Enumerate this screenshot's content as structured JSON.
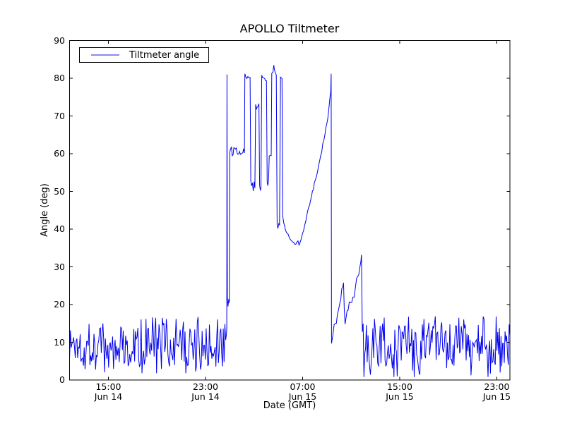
{
  "title": "APOLLO Tiltmeter",
  "legend": {
    "label": "Tiltmeter angle",
    "position": "upper left"
  },
  "colors": {
    "line": "#0000ee",
    "legend_line": "#8a8af0",
    "frame": "#000000",
    "text": "#000000",
    "background": "#ffffff"
  },
  "chart_data": {
    "type": "line",
    "title": "APOLLO Tiltmeter",
    "xlabel": "Date (GMT)",
    "ylabel": "Angle (deg)",
    "ylim": [
      0,
      90
    ],
    "y_ticks": [
      0,
      10,
      20,
      30,
      40,
      50,
      60,
      70,
      80,
      90
    ],
    "grid": false,
    "legend_position": "upper left",
    "x_axis": {
      "unit": "hours_from_left_edge",
      "span_hours": 36.28,
      "ticks": [
        {
          "hours": 3.2,
          "time": "15:00",
          "date": "Jun 14"
        },
        {
          "hours": 11.2,
          "time": "23:00",
          "date": "Jun 14"
        },
        {
          "hours": 19.2,
          "time": "07:00",
          "date": "Jun 15"
        },
        {
          "hours": 27.2,
          "time": "15:00",
          "date": "Jun 15"
        },
        {
          "hours": 35.2,
          "time": "23:00",
          "date": "Jun 15"
        }
      ]
    },
    "series": [
      {
        "name": "Tiltmeter angle",
        "color": "#0000ee",
        "segments": [
          {
            "t": "noise",
            "h0": 0,
            "h1": 12.93,
            "mean": 9.4,
            "amp": 6.0,
            "min": 1.8
          },
          {
            "t": "path",
            "amp": 0.6,
            "pts": [
              [
                12.95,
                14.0
              ],
              [
                12.97,
                81.0
              ],
              [
                13.0,
                22.0
              ],
              [
                13.05,
                19.5
              ],
              [
                13.12,
                21.5
              ],
              [
                13.16,
                20.5
              ]
            ]
          },
          {
            "t": "noise",
            "h0": 13.2,
            "h1": 14.41,
            "mean": 60.8,
            "amp": 0.85,
            "min": 58.8
          },
          {
            "t": "path",
            "amp": 0.5,
            "pts": [
              [
                14.44,
                81.2
              ],
              [
                14.52,
                80.4
              ],
              [
                14.87,
                80.2
              ]
            ]
          },
          {
            "t": "noise",
            "h0": 14.93,
            "h1": 15.27,
            "mean": 51.0,
            "amp": 1.4,
            "min": 49.2
          },
          {
            "t": "noise",
            "h0": 15.33,
            "h1": 15.6,
            "mean": 72.8,
            "amp": 0.7
          },
          {
            "t": "noise",
            "h0": 15.66,
            "h1": 15.77,
            "mean": 50.2,
            "amp": 1.2
          },
          {
            "t": "path",
            "amp": 0.4,
            "pts": [
              [
                15.83,
                80.8
              ],
              [
                16.0,
                80.1
              ],
              [
                16.22,
                79.3
              ]
            ]
          },
          {
            "t": "noise",
            "h0": 16.28,
            "h1": 16.4,
            "mean": 52.3,
            "amp": 1.0
          },
          {
            "t": "noise",
            "h0": 16.45,
            "h1": 16.61,
            "mean": 59.3,
            "amp": 0.6
          },
          {
            "t": "path",
            "amp": 0.5,
            "pts": [
              [
                16.66,
                81.3
              ],
              [
                16.76,
                81.6
              ],
              [
                16.83,
                83.5
              ],
              [
                16.88,
                82.2
              ],
              [
                17.03,
                80.9
              ]
            ]
          },
          {
            "t": "noise",
            "h0": 17.1,
            "h1": 17.3,
            "mean": 40.8,
            "amp": 0.9
          },
          {
            "t": "path",
            "amp": 0.3,
            "pts": [
              [
                17.38,
                80.3
              ],
              [
                17.5,
                79.9
              ]
            ]
          },
          {
            "t": "path",
            "amp": 0.7,
            "pts": [
              [
                17.56,
                43.5
              ],
              [
                17.8,
                39.6
              ],
              [
                18.1,
                37.8
              ],
              [
                18.55,
                36.0
              ],
              [
                19.0,
                36.5
              ]
            ]
          },
          {
            "t": "path",
            "amp": 0.6,
            "pts": [
              [
                19.1,
                37.5
              ],
              [
                19.45,
                42.0
              ],
              [
                19.85,
                47.5
              ],
              [
                20.25,
                53.0
              ],
              [
                20.6,
                58.0
              ],
              [
                20.95,
                63.5
              ],
              [
                21.2,
                68.0
              ],
              [
                21.35,
                71.5
              ],
              [
                21.47,
                75.5
              ],
              [
                21.52,
                76.3
              ],
              [
                21.55,
                81.2
              ]
            ]
          },
          {
            "t": "path",
            "amp": 1.4,
            "pts": [
              [
                21.58,
                9.7
              ],
              [
                21.7,
                12.0
              ],
              [
                21.9,
                15.0
              ],
              [
                22.15,
                18.5
              ],
              [
                22.35,
                21.5
              ],
              [
                22.5,
                24.5
              ],
              [
                22.57,
                25.8
              ],
              [
                22.63,
                19.0
              ],
              [
                22.7,
                14.8
              ],
              [
                22.78,
                16.5
              ],
              [
                22.95,
                18.5
              ],
              [
                23.15,
                20.5
              ],
              [
                23.35,
                22.0
              ],
              [
                23.55,
                24.5
              ],
              [
                23.75,
                27.5
              ],
              [
                23.9,
                29.5
              ],
              [
                24.0,
                31.5
              ],
              [
                24.05,
                33.2
              ]
            ]
          },
          {
            "t": "noise",
            "h0": 24.12,
            "h1": 36.28,
            "mean": 9.3,
            "amp": 6.0,
            "min": 0.8
          }
        ]
      }
    ]
  }
}
